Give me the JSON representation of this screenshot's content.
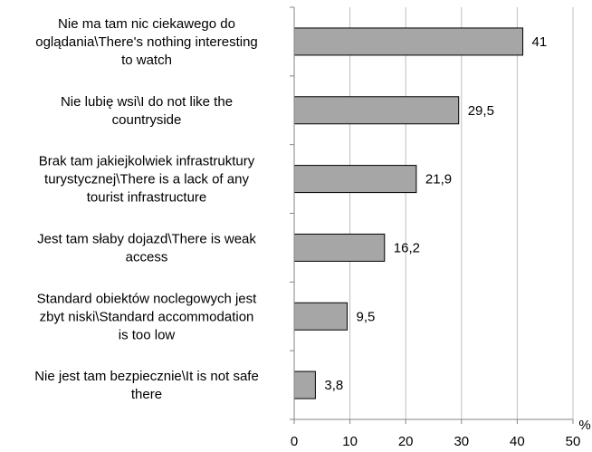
{
  "chart_data": {
    "type": "bar",
    "orientation": "horizontal",
    "categories": [
      [
        "Nie ma tam nic ciekawego do",
        "oglądania\\There's nothing interesting",
        "to watch"
      ],
      [
        "Nie lubię wsi\\I do not like the",
        "countryside"
      ],
      [
        "Brak tam jakiejkolwiek infrastruktury",
        "turystycznej\\There is a lack of any",
        "tourist infrastructure"
      ],
      [
        "Jest tam słaby dojazd\\There is weak",
        "access"
      ],
      [
        "Standard obiektów noclegowych jest",
        "zbyt niski\\Standard accommodation",
        "is too low"
      ],
      [
        "Nie jest tam bezpiecznie\\It is not safe",
        "there"
      ]
    ],
    "values": [
      41,
      29.5,
      21.9,
      16.2,
      9.5,
      3.8
    ],
    "value_labels": [
      "41",
      "29,5",
      "21,9",
      "16,2",
      "9,5",
      "3,8"
    ],
    "xlim": [
      0,
      50
    ],
    "xticks": [
      0,
      10,
      20,
      30,
      40,
      50
    ],
    "xtick_labels": [
      "0",
      "10",
      "20",
      "30",
      "40",
      "50"
    ],
    "unit_label": "%",
    "grid": true,
    "bar_color": "#a6a6a6",
    "bar_edge_color": "#000000",
    "grid_color": "#bfbfbf"
  }
}
